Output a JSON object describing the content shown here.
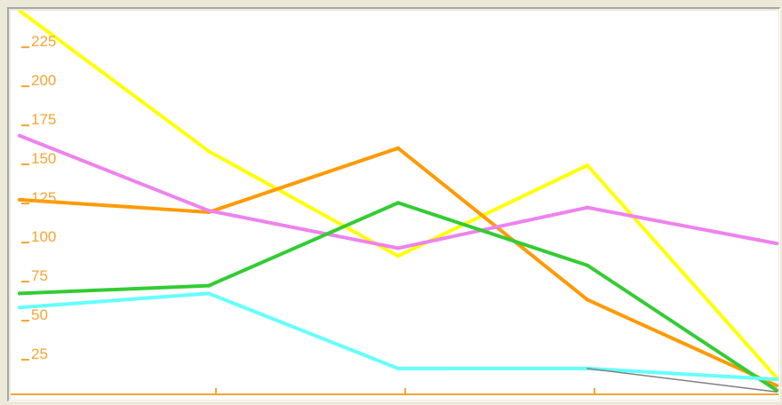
{
  "colors": {
    "axis": "#f6a431",
    "tick_text": "#f6a431",
    "background": "#ffffff",
    "frame": "#ece9d8"
  },
  "chart_data": {
    "type": "line",
    "title": "",
    "xlabel": "",
    "ylabel": "",
    "ylim": [
      0,
      245
    ],
    "xlim": [
      0,
      4
    ],
    "y_ticks": [
      25,
      50,
      75,
      100,
      125,
      150,
      175,
      200,
      225
    ],
    "x": [
      0,
      1,
      2,
      3,
      4
    ],
    "grid": false,
    "series": [
      {
        "color": "#ffff00",
        "values": [
          245,
          155,
          88,
          146,
          10
        ]
      },
      {
        "color": "#ff9a00",
        "values": [
          124,
          116,
          157,
          60,
          5
        ]
      },
      {
        "color": "#ee82ee",
        "values": [
          165,
          117,
          93,
          119,
          96
        ]
      },
      {
        "color": "#33cc33",
        "values": [
          64,
          69,
          122,
          82,
          2
        ]
      },
      {
        "color": "#66ffff",
        "values": [
          55,
          64,
          16,
          16,
          9
        ]
      },
      {
        "color": "#808080",
        "values": [
          null,
          null,
          null,
          16,
          1
        ]
      }
    ]
  }
}
